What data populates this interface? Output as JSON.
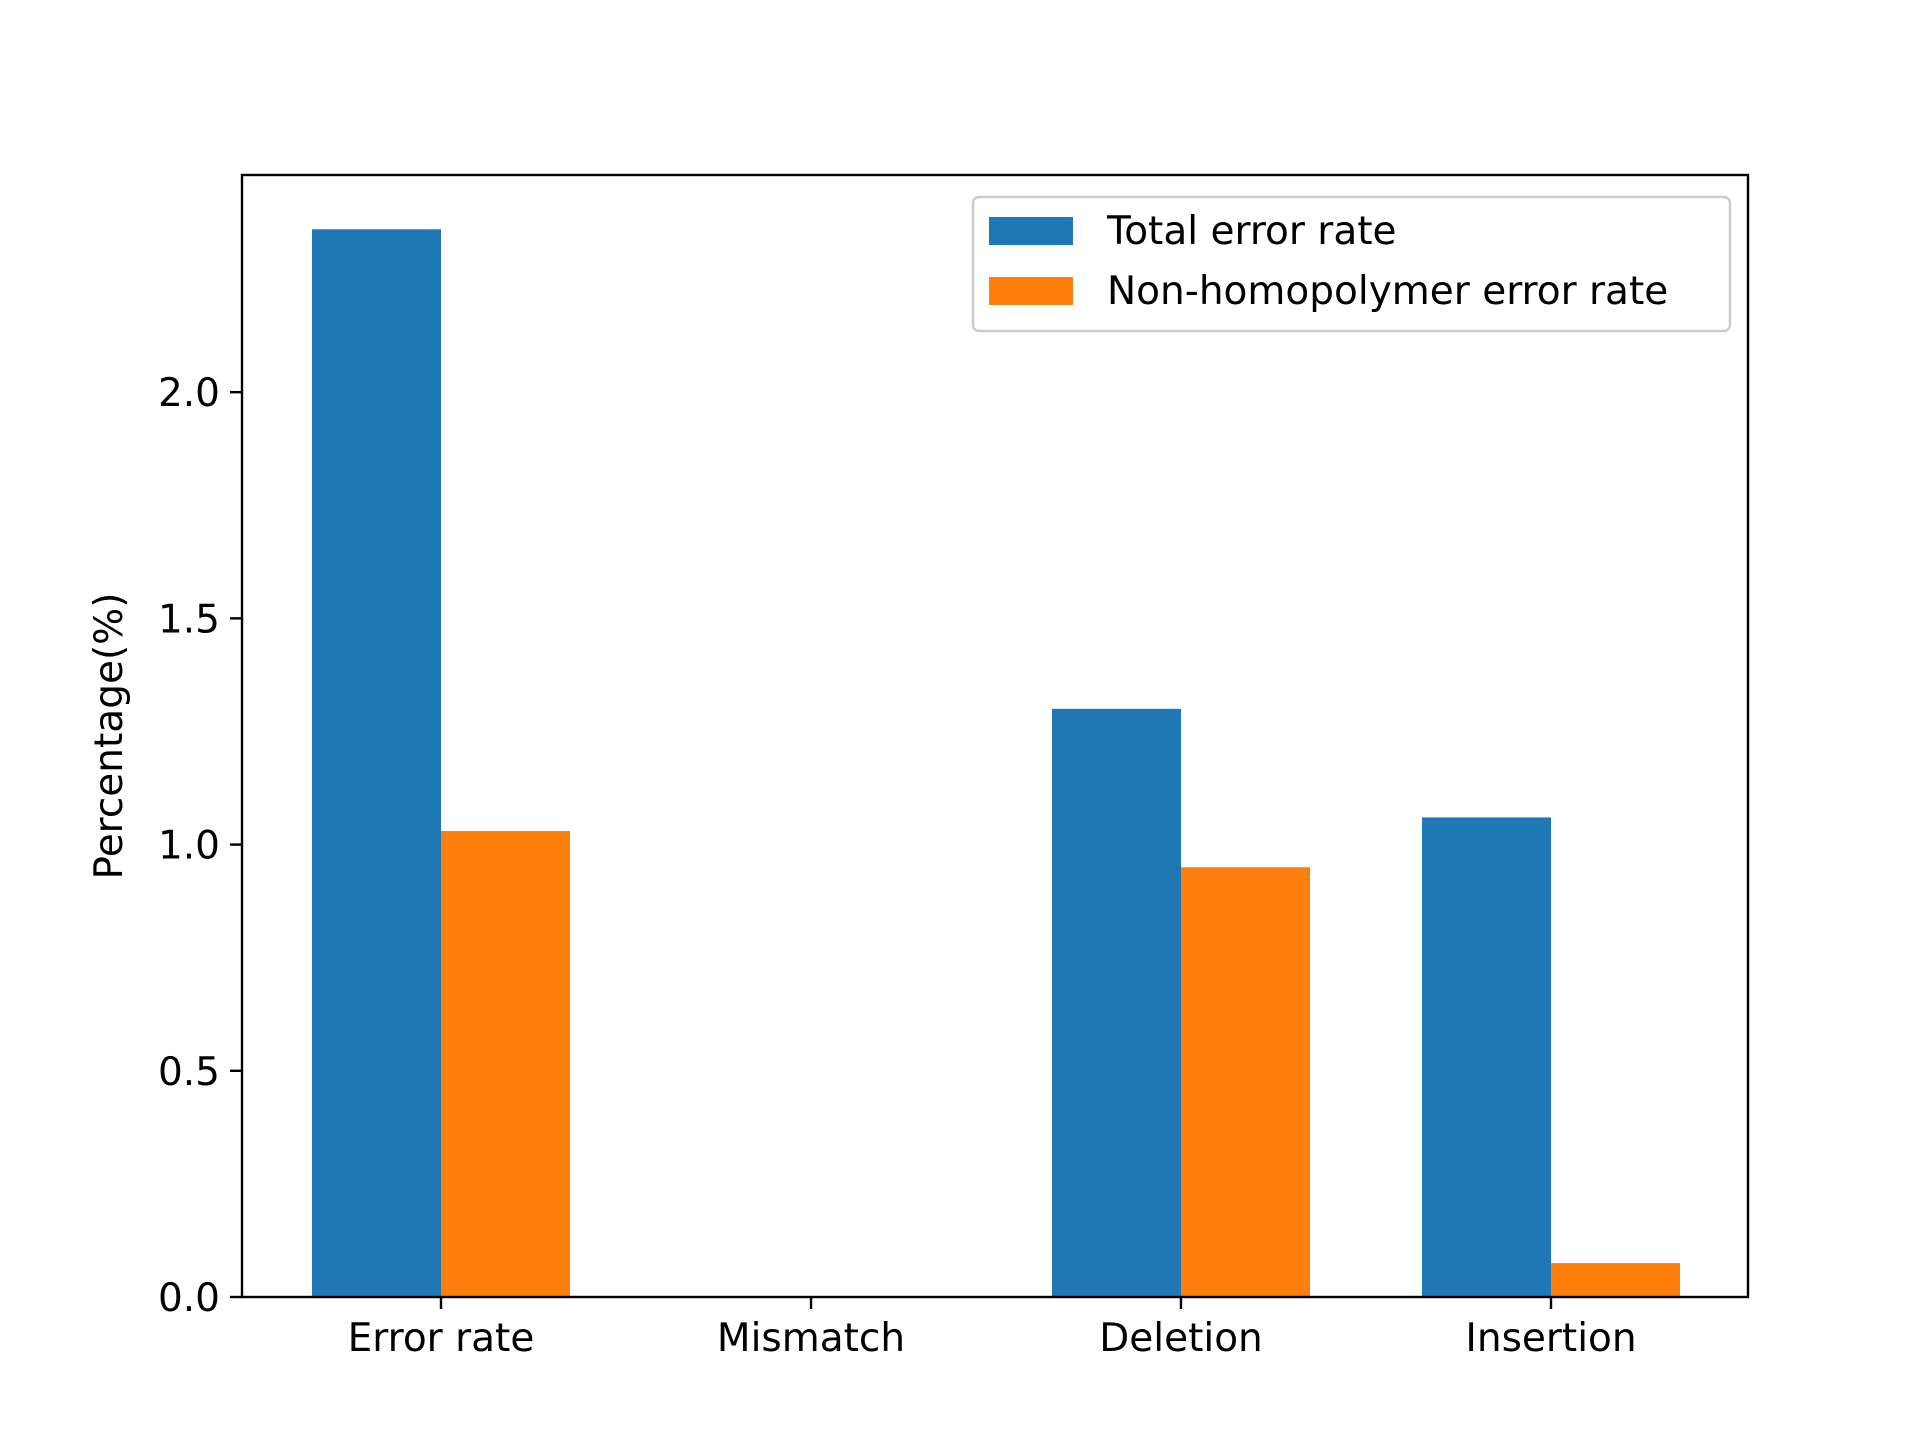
{
  "chart_data": {
    "type": "bar",
    "categories": [
      "Error rate",
      "Mismatch",
      "Deletion",
      "Insertion"
    ],
    "series": [
      {
        "name": "Total error rate",
        "color": "#1f77b4",
        "values": [
          2.36,
          0,
          1.3,
          1.06
        ]
      },
      {
        "name": "Non-homopolymer error rate",
        "color": "#ff7f0e",
        "values": [
          1.03,
          0,
          0.95,
          0.075
        ]
      }
    ],
    "title": "",
    "xlabel": "",
    "ylabel": "Percentage(%)",
    "ylim": [
      0,
      2.48
    ],
    "yticks": [
      0.0,
      0.5,
      1.0,
      1.5,
      2.0
    ],
    "ytick_labels": [
      "0.0",
      "0.5",
      "1.0",
      "1.5",
      "2.0"
    ],
    "grid": false,
    "legend_position": "top-right"
  }
}
